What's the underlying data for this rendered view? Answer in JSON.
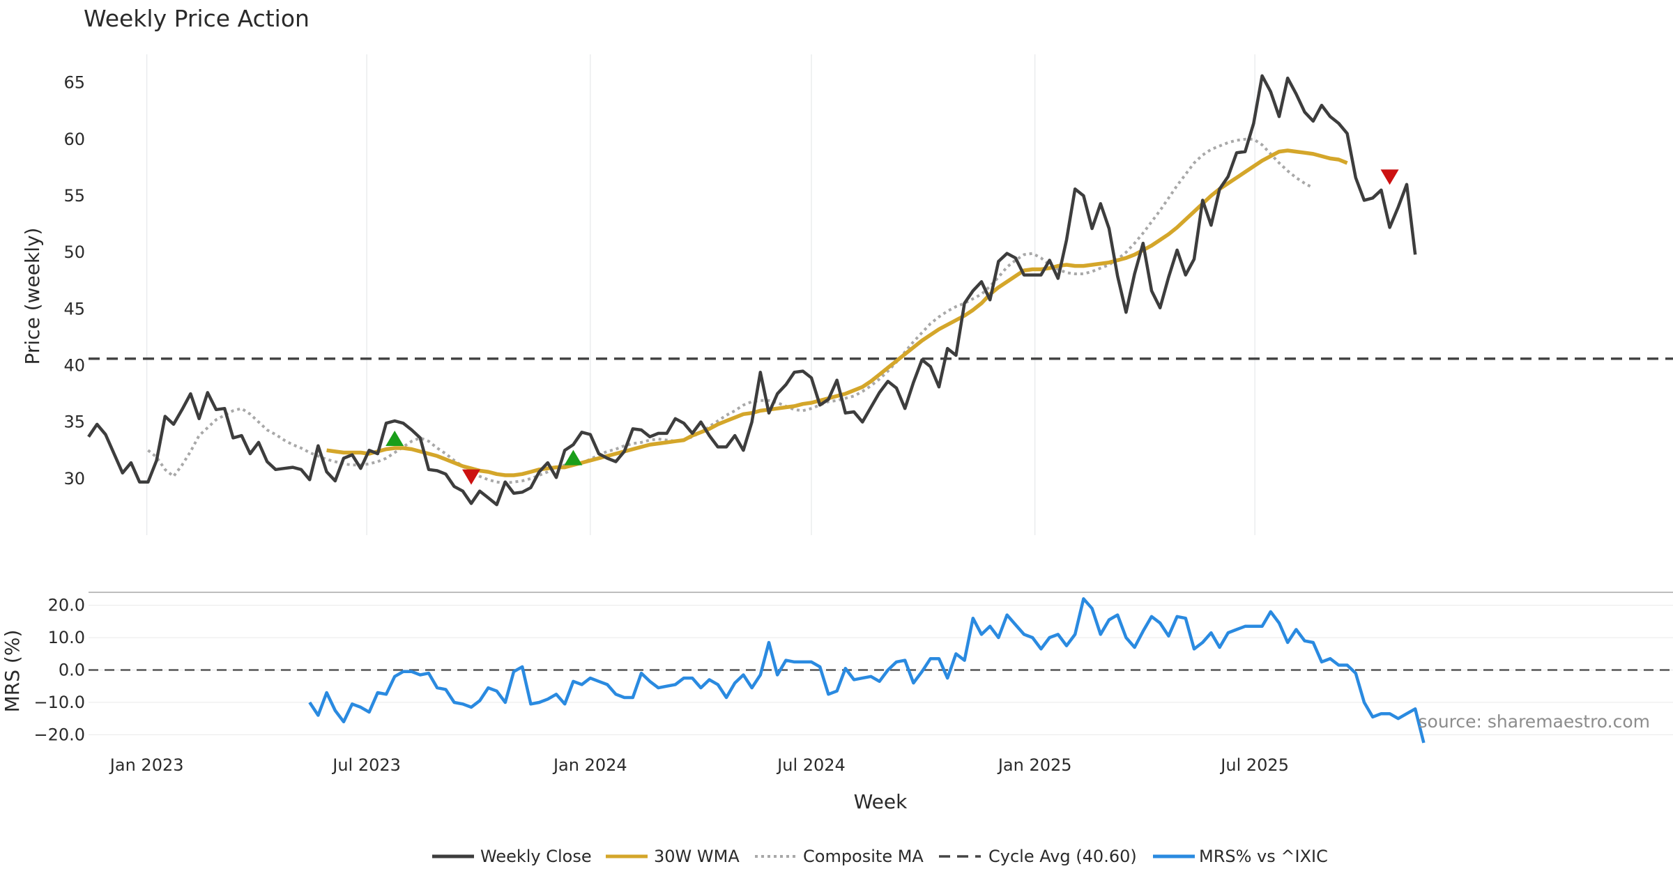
{
  "chart_data": {
    "type": "line",
    "title": "Weekly Price Action",
    "xlabel": "Week",
    "source": "source: sharemaestro.com",
    "x_ticks": [
      "Jan 2023",
      "Jul 2023",
      "Jan 2024",
      "Jul 2024",
      "Jan 2025",
      "Jul 2025"
    ],
    "x_start": "2022-11-14",
    "price_panel": {
      "ylabel": "Price (weekly)",
      "ylim": [
        25.0,
        67.5
      ],
      "yticks": [
        "30",
        "35",
        "40",
        "45",
        "50",
        "55",
        "60",
        "65"
      ],
      "cycle_avg": 40.6
    },
    "mrs_panel": {
      "ylabel": "MRS (%)",
      "ylim": [
        -24,
        24
      ],
      "yticks": [
        "20.0",
        "10.0",
        "0.0",
        "−10.0",
        "−20.0"
      ]
    },
    "legend": [
      {
        "label": "Weekly Close",
        "style": "solid",
        "color": "#3d3d3d"
      },
      {
        "label": "30W WMA",
        "style": "solid",
        "color": "#d4a62a"
      },
      {
        "label": "Composite MA",
        "style": "dotted",
        "color": "#a8a8a8"
      },
      {
        "label": "Cycle Avg (40.60)",
        "style": "dashed",
        "color": "#444444"
      },
      {
        "label": "MRS% vs ^IXIC",
        "style": "solid",
        "color": "#2a8ae0"
      }
    ],
    "colors": {
      "close": "#3d3d3d",
      "wma": "#d4a62a",
      "composite": "#a8a8a8",
      "cycle": "#444444",
      "mrs": "#2a8ae0",
      "buy": "#1a9e1a",
      "sell": "#cc1111"
    },
    "series": [
      {
        "name": "Weekly Close",
        "start_date": "2022-11-14",
        "values": [
          33.7,
          34.8,
          33.9,
          32.2,
          30.5,
          31.4,
          29.7,
          29.7,
          31.6,
          35.5,
          34.8,
          36.1,
          37.5,
          35.3,
          37.6,
          36.1,
          36.2,
          33.6,
          33.8,
          32.2,
          33.2,
          31.5,
          30.8,
          30.9,
          31.0,
          30.8,
          29.9,
          32.9,
          30.6,
          29.8,
          31.8,
          32.1,
          30.9,
          32.5,
          32.2,
          34.9,
          35.1,
          34.9,
          34.3,
          33.6,
          30.8,
          30.7,
          30.4,
          29.3,
          28.9,
          27.8,
          28.9,
          28.3,
          27.7,
          29.7,
          28.7,
          28.8,
          29.2,
          30.6,
          31.4,
          30.1,
          32.5,
          33.0,
          34.1,
          33.9,
          32.2,
          31.8,
          31.5,
          32.4,
          34.4,
          34.3,
          33.7,
          34.0,
          34.0,
          35.3,
          34.9,
          34.0,
          35.0,
          33.8,
          32.8,
          32.8,
          33.8,
          32.5,
          35.0,
          39.4,
          35.8,
          37.5,
          38.3,
          39.4,
          39.5,
          38.9,
          36.5,
          37.0,
          38.7,
          35.8,
          35.9,
          35.0,
          36.3,
          37.6,
          38.6,
          38.0,
          36.2,
          38.5,
          40.5,
          39.9,
          38.1,
          41.5,
          40.9,
          45.5,
          46.6,
          47.4,
          45.8,
          49.2,
          49.9,
          49.5,
          48.0,
          48.0,
          48.0,
          49.3,
          47.7,
          51.1,
          55.6,
          55.0,
          52.1,
          54.3,
          52.1,
          47.9,
          44.7,
          48.1,
          50.8,
          46.6,
          45.1,
          47.8,
          50.2,
          48.0,
          49.4,
          54.6,
          52.4,
          55.6,
          56.7,
          58.8,
          58.9,
          61.4,
          65.6,
          64.2,
          62.0,
          65.4,
          64.0,
          62.4,
          61.6,
          63.0,
          62.0,
          61.4,
          60.5,
          56.6,
          54.6,
          54.8,
          55.5,
          52.2,
          54.0,
          56.0,
          49.8
        ]
      },
      {
        "name": "30W WMA",
        "start_date": "2023-05-29",
        "values": [
          32.5,
          32.4,
          32.3,
          32.3,
          32.3,
          32.2,
          32.4,
          32.6,
          32.7,
          32.7,
          32.6,
          32.4,
          32.2,
          32.0,
          31.7,
          31.4,
          31.1,
          30.9,
          30.7,
          30.6,
          30.4,
          30.3,
          30.3,
          30.4,
          30.6,
          30.8,
          30.9,
          31.0,
          31.0,
          31.2,
          31.4,
          31.6,
          31.8,
          32.0,
          32.2,
          32.4,
          32.6,
          32.8,
          33.0,
          33.1,
          33.2,
          33.3,
          33.4,
          33.8,
          34.1,
          34.4,
          34.8,
          35.1,
          35.4,
          35.7,
          35.8,
          36.0,
          36.1,
          36.2,
          36.3,
          36.4,
          36.6,
          36.7,
          36.9,
          37.1,
          37.3,
          37.5,
          37.8,
          38.1,
          38.6,
          39.2,
          39.8,
          40.4,
          41.0,
          41.6,
          42.2,
          42.7,
          43.2,
          43.6,
          44.0,
          44.4,
          44.9,
          45.5,
          46.3,
          46.9,
          47.4,
          47.9,
          48.4,
          48.5,
          48.5,
          48.6,
          48.8,
          48.9,
          48.8,
          48.8,
          48.9,
          49.0,
          49.1,
          49.3,
          49.5,
          49.8,
          50.2,
          50.6,
          51.1,
          51.6,
          52.2,
          52.9,
          53.6,
          54.3,
          55.0,
          55.6,
          56.1,
          56.6,
          57.1,
          57.6,
          58.1,
          58.5,
          58.9,
          59.0,
          58.9,
          58.8,
          58.7,
          58.5,
          58.3,
          58.2,
          57.9
        ]
      },
      {
        "name": "Composite MA",
        "start_date": "2023-01-02",
        "values": [
          32.5,
          31.9,
          30.8,
          30.2,
          31.2,
          32.4,
          33.8,
          34.5,
          35.2,
          35.6,
          36.0,
          36.2,
          35.7,
          35.0,
          34.3,
          33.9,
          33.4,
          33.0,
          32.7,
          32.3,
          32.0,
          31.7,
          31.5,
          31.3,
          31.2,
          31.2,
          31.3,
          31.5,
          31.8,
          32.3,
          32.8,
          33.3,
          33.6,
          33.3,
          32.7,
          32.2,
          31.6,
          31.1,
          30.6,
          30.2,
          29.9,
          29.7,
          29.6,
          29.7,
          29.8,
          30.0,
          30.3,
          30.6,
          31.0,
          31.2,
          31.2,
          31.4,
          31.7,
          32.1,
          32.4,
          32.6,
          32.9,
          33.1,
          33.2,
          33.4,
          33.5,
          33.4,
          33.3,
          33.4,
          33.7,
          34.1,
          34.6,
          35.1,
          35.6,
          36.0,
          36.5,
          36.8,
          36.9,
          36.9,
          36.7,
          36.4,
          36.1,
          36.0,
          36.2,
          36.5,
          36.8,
          36.9,
          37.1,
          37.3,
          37.7,
          38.2,
          38.8,
          39.5,
          40.3,
          41.2,
          42.1,
          42.9,
          43.7,
          44.3,
          44.8,
          45.2,
          45.5,
          45.9,
          46.3,
          47.0,
          47.8,
          48.7,
          49.3,
          49.8,
          49.9,
          49.5,
          48.9,
          48.5,
          48.2,
          48.1,
          48.1,
          48.3,
          48.6,
          48.9,
          49.4,
          50.0,
          50.8,
          51.7,
          52.7,
          53.7,
          54.8,
          55.9,
          56.9,
          57.9,
          58.6,
          59.1,
          59.4,
          59.7,
          59.9,
          60.0,
          60.0,
          59.5,
          58.7,
          57.9,
          57.2,
          56.6,
          56.1,
          55.7
        ]
      },
      {
        "name": "MRS% vs ^IXIC",
        "start_date": "2023-05-15",
        "values": [
          -10.0,
          -14.0,
          -7.0,
          -12.5,
          -16.0,
          -10.5,
          -11.5,
          -13.0,
          -7.0,
          -7.5,
          -2.0,
          -0.5,
          -0.5,
          -1.5,
          -1.0,
          -5.5,
          -6.0,
          -10.0,
          -10.5,
          -11.5,
          -9.5,
          -5.5,
          -6.5,
          -10.0,
          -0.5,
          1.0,
          -10.5,
          -10.0,
          -9.0,
          -7.5,
          -10.5,
          -3.5,
          -4.5,
          -2.5,
          -3.5,
          -4.5,
          -7.5,
          -8.5,
          -8.5,
          -1.0,
          -3.5,
          -5.5,
          -5.0,
          -4.5,
          -2.5,
          -2.5,
          -5.5,
          -3.0,
          -4.5,
          -8.5,
          -4.0,
          -1.5,
          -5.5,
          -1.5,
          8.5,
          -1.5,
          3.0,
          2.5,
          2.5,
          2.5,
          1.0,
          -7.5,
          -6.5,
          0.5,
          -3.0,
          -2.5,
          -2.0,
          -3.5,
          0.0,
          2.5,
          3.0,
          -4.0,
          -0.5,
          3.5,
          3.5,
          -2.5,
          5.0,
          3.0,
          16.0,
          11.0,
          13.5,
          10.0,
          17.0,
          14.0,
          11.0,
          10.0,
          6.5,
          10.0,
          11.0,
          7.5,
          11.0,
          22.0,
          19.0,
          11.0,
          15.5,
          17.0,
          10.0,
          7.0,
          12.0,
          16.5,
          14.5,
          10.5,
          16.5,
          16.0,
          6.5,
          8.5,
          11.5,
          7.0,
          11.5,
          12.5,
          13.5,
          13.5,
          13.5,
          18.0,
          14.5,
          8.5,
          12.5,
          9.0,
          8.5,
          2.5,
          3.5,
          1.5,
          1.5,
          -1.0,
          -10.0,
          -14.5,
          -13.5,
          -13.5,
          -15.0,
          -13.5,
          -12.0,
          -22.5
        ]
      }
    ],
    "signals": [
      {
        "type": "buy",
        "date": "2023-07-24",
        "y": 33.5
      },
      {
        "type": "sell",
        "date": "2023-09-25",
        "y": 30.2
      },
      {
        "type": "buy",
        "date": "2023-12-18",
        "y": 31.8
      },
      {
        "type": "sell",
        "date": "2025-10-20",
        "y": 56.7
      }
    ]
  }
}
